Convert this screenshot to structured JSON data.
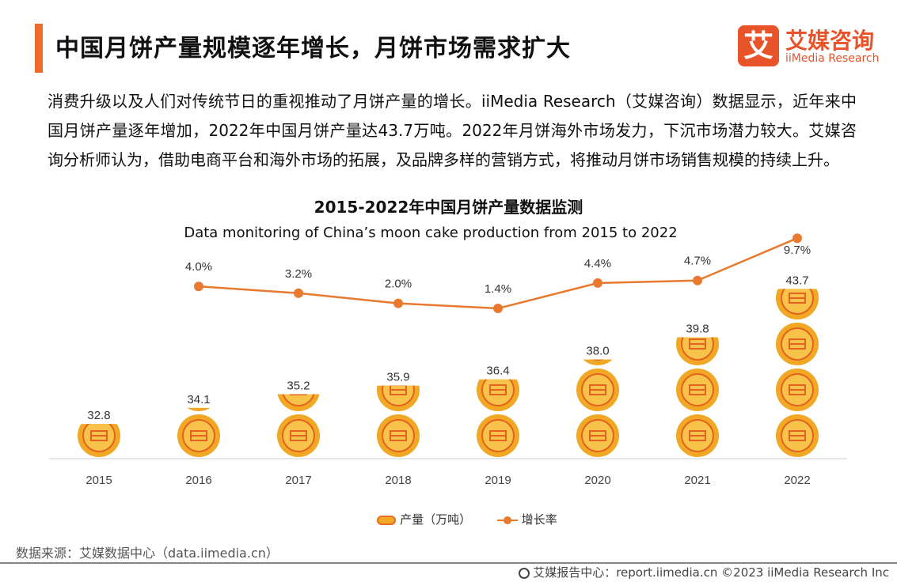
{
  "page": {
    "title": "中国月饼产量规模逐年增长，月饼市场需求扩大",
    "intro": "消费升级以及人们对传统节日的重视推动了月饼产量的增长。iiMedia Research（艾媒咨询）数据显示，近年来中国月饼产量逐年增加，2022年中国月饼产量达43.7万吨。2022年月饼海外市场发力，下沉市场潜力较大。艾媒咨询分析师认为，借助电商平台和海外市场的拓展，及品牌多样的营销方式，将推动月饼市场销售规模的持续上升。",
    "source": "数据来源：艾媒数据中心（data.iimedia.cn）",
    "footer": "艾媒报告中心：report.iimedia.cn  ©2023  iiMedia Research  Inc"
  },
  "logo": {
    "mark": "艾",
    "cn": "艾媒咨询",
    "en": "iiMedia Research",
    "color": "#e8532a"
  },
  "chart_data": {
    "type": "bar",
    "title": "2015-2022年中国月饼产量数据监测",
    "subtitle": "Data monitoring of China’s moon cake production from 2015 to 2022",
    "categories": [
      "2015",
      "2016",
      "2017",
      "2018",
      "2019",
      "2020",
      "2021",
      "2022"
    ],
    "series": [
      {
        "name": "产量（万吨）",
        "kind": "pictorial-bar",
        "color": "#f0a825",
        "values": [
          32.8,
          34.1,
          35.2,
          35.9,
          36.4,
          38.0,
          39.8,
          43.7
        ],
        "labels": [
          "32.8",
          "34.1",
          "35.2",
          "35.9",
          "36.4",
          "38.0",
          "39.8",
          "43.7"
        ]
      },
      {
        "name": "增长率",
        "kind": "line",
        "color": "#e8792e",
        "values": [
          null,
          4.0,
          3.2,
          2.0,
          1.4,
          4.4,
          4.7,
          9.7
        ],
        "labels": [
          "",
          "4.0%",
          "3.2%",
          "2.0%",
          "1.4%",
          "4.4%",
          "4.7%",
          "9.7%"
        ]
      }
    ],
    "ylim_bar": [
      30,
      45
    ],
    "ylim_line": [
      0,
      10
    ],
    "legend_position": "bottom",
    "grid": false
  }
}
